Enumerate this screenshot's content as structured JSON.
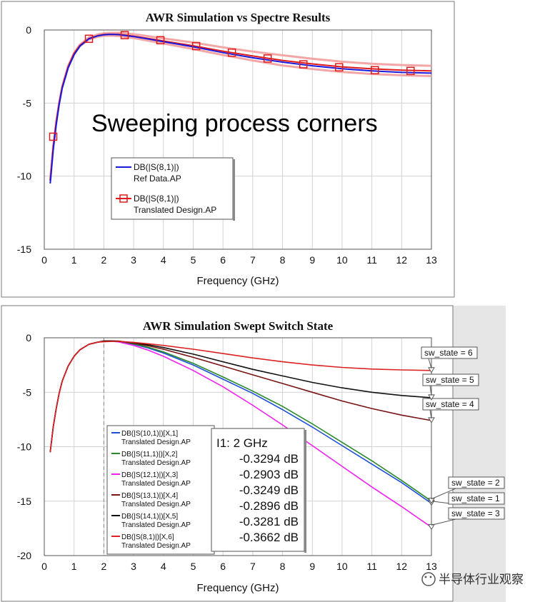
{
  "colors": {
    "ref": "#1a1adf",
    "translated": "#e01b1b",
    "translated_band": "#f4a6a6",
    "sw1": "#1f4fd8",
    "sw2": "#2a8a2a",
    "sw3": "#ee22ee",
    "sw4": "#7a1414",
    "sw5": "#111111",
    "sw6": "#dd2222",
    "grid": "#d2d2d2",
    "side_panel": "#e6e6e6"
  },
  "watermark": "半导体行业观察",
  "chart_data": [
    {
      "type": "line",
      "title": "AWR Simulation vs Spectre Results",
      "xlabel": "Frequency (GHz)",
      "ylabel": "",
      "xlim": [
        0,
        13
      ],
      "ylim": [
        -15,
        0
      ],
      "xticks": [
        "0",
        "1",
        "2",
        "3",
        "4",
        "5",
        "6",
        "7",
        "8",
        "9",
        "10",
        "11",
        "12",
        "13"
      ],
      "yticks": [
        "0",
        "-5",
        "-10",
        "-15"
      ],
      "grid": true,
      "legend_position": "center-left",
      "annotation": "Sweeping process corners",
      "legend": [
        {
          "name": "DB(|S(8,1)|)",
          "source": "Ref Data.AP",
          "marker": "none"
        },
        {
          "name": "DB(|S(8,1)|)",
          "source": "Translated Design.AP",
          "marker": "square"
        }
      ],
      "x": [
        0.2,
        0.3,
        0.4,
        0.5,
        0.6,
        0.8,
        1.0,
        1.2,
        1.5,
        1.8,
        2.0,
        2.2,
        2.5,
        3.0,
        3.5,
        4.0,
        5.0,
        6.0,
        7.0,
        8.0,
        9.0,
        10.0,
        11.0,
        12.0,
        13.0
      ],
      "series": [
        {
          "name": "Ref Data.AP",
          "values": [
            -10.5,
            -8.2,
            -6.5,
            -5.1,
            -4.0,
            -2.6,
            -1.7,
            -1.1,
            -0.6,
            -0.4,
            -0.33,
            -0.3,
            -0.32,
            -0.45,
            -0.62,
            -0.8,
            -1.15,
            -1.55,
            -1.9,
            -2.2,
            -2.45,
            -2.65,
            -2.8,
            -2.9,
            -2.95
          ]
        },
        {
          "name": "Translated Design.AP",
          "values": [
            -10.3,
            -8.0,
            -6.3,
            -5.0,
            -3.9,
            -2.5,
            -1.6,
            -1.05,
            -0.58,
            -0.38,
            -0.31,
            -0.29,
            -0.3,
            -0.42,
            -0.58,
            -0.75,
            -1.08,
            -1.45,
            -1.78,
            -2.08,
            -2.32,
            -2.52,
            -2.66,
            -2.75,
            -2.8
          ]
        }
      ],
      "markers": {
        "x": [
          0.3,
          1.5,
          2.7,
          3.9,
          5.1,
          6.3,
          7.5,
          8.7,
          9.9,
          11.1,
          12.3
        ],
        "y": [
          -7.3,
          -0.6,
          -0.35,
          -0.7,
          -1.1,
          -1.55,
          -1.95,
          -2.35,
          -2.55,
          -2.75,
          -2.8
        ]
      }
    },
    {
      "type": "line",
      "title": "AWR Simulation Swept Switch State",
      "xlabel": "Frequency (GHz)",
      "ylabel": "",
      "xlim": [
        0,
        13
      ],
      "ylim": [
        -20,
        0
      ],
      "xticks": [
        "0",
        "1",
        "2",
        "3",
        "4",
        "5",
        "6",
        "7",
        "8",
        "9",
        "10",
        "11",
        "12",
        "13"
      ],
      "yticks": [
        "0",
        "-5",
        "-10",
        "-15",
        "-20"
      ],
      "grid": true,
      "legend_position": "bottom-left",
      "cursor": {
        "label": "I1: 2 GHz",
        "x": 2,
        "values": [
          "-0.3294 dB",
          "-0.2903 dB",
          "-0.3249 dB",
          "-0.2896 dB",
          "-0.3281 dB",
          "-0.3662 dB"
        ]
      },
      "x": [
        0.2,
        0.3,
        0.4,
        0.5,
        0.6,
        0.8,
        1.0,
        1.2,
        1.5,
        1.8,
        2.0,
        2.2,
        2.5,
        3.0,
        3.5,
        4.0,
        5.0,
        6.0,
        7.0,
        8.0,
        9.0,
        10.0,
        11.0,
        12.0,
        13.0
      ],
      "series": [
        {
          "name": "DB(|S(10,1)|)[X,1]",
          "source": "Translated Design.AP",
          "color_key": "sw1",
          "end_label": "sw_state = 1",
          "values": [
            -10.5,
            -8.2,
            -6.5,
            -5.1,
            -4.0,
            -2.6,
            -1.7,
            -1.1,
            -0.6,
            -0.4,
            -0.33,
            -0.3,
            -0.35,
            -0.6,
            -0.95,
            -1.4,
            -2.5,
            -3.8,
            -5.1,
            -6.6,
            -8.2,
            -9.9,
            -11.6,
            -13.3,
            -15.2
          ]
        },
        {
          "name": "DB(|S(11,1)|)[X,2]",
          "source": "Translated Design.AP",
          "color_key": "sw2",
          "end_label": "sw_state = 2",
          "values": [
            -10.5,
            -8.2,
            -6.5,
            -5.1,
            -4.0,
            -2.6,
            -1.7,
            -1.1,
            -0.6,
            -0.4,
            -0.29,
            -0.28,
            -0.32,
            -0.55,
            -0.88,
            -1.3,
            -2.35,
            -3.6,
            -4.9,
            -6.3,
            -7.9,
            -9.6,
            -11.3,
            -13.1,
            -15.0
          ]
        },
        {
          "name": "DB(|S(12,1)|)[X,3]",
          "source": "Translated Design.AP",
          "color_key": "sw3",
          "end_label": "sw_state = 3",
          "values": [
            -10.5,
            -8.2,
            -6.5,
            -5.1,
            -4.0,
            -2.6,
            -1.7,
            -1.1,
            -0.6,
            -0.4,
            -0.32,
            -0.3,
            -0.38,
            -0.7,
            -1.15,
            -1.7,
            -3.0,
            -4.5,
            -6.2,
            -8.0,
            -9.9,
            -11.8,
            -13.7,
            -15.5,
            -17.4
          ]
        },
        {
          "name": "DB(|S(13,1)|)[X,4]",
          "source": "Translated Design.AP",
          "color_key": "sw4",
          "end_label": "sw_state = 4",
          "values": [
            -10.5,
            -8.2,
            -6.5,
            -5.1,
            -4.0,
            -2.6,
            -1.7,
            -1.1,
            -0.6,
            -0.4,
            -0.29,
            -0.28,
            -0.3,
            -0.5,
            -0.75,
            -1.05,
            -1.8,
            -2.6,
            -3.4,
            -4.2,
            -5.0,
            -5.8,
            -6.5,
            -7.1,
            -7.6
          ]
        },
        {
          "name": "DB(|S(14,1)|)[X,5]",
          "source": "Translated Design.AP",
          "color_key": "sw5",
          "end_label": "sw_state = 5",
          "values": [
            -10.5,
            -8.2,
            -6.5,
            -5.1,
            -4.0,
            -2.6,
            -1.7,
            -1.1,
            -0.6,
            -0.4,
            -0.33,
            -0.3,
            -0.32,
            -0.45,
            -0.65,
            -0.9,
            -1.5,
            -2.2,
            -2.9,
            -3.5,
            -4.1,
            -4.6,
            -5.0,
            -5.3,
            -5.5
          ]
        },
        {
          "name": "DB(|S(8,1)|)[X,6]",
          "source": "Translated Design.AP",
          "color_key": "sw6",
          "end_label": "sw_state = 6",
          "values": [
            -10.5,
            -8.2,
            -6.5,
            -5.1,
            -4.0,
            -2.6,
            -1.7,
            -1.1,
            -0.6,
            -0.4,
            -0.37,
            -0.34,
            -0.33,
            -0.42,
            -0.55,
            -0.7,
            -1.05,
            -1.45,
            -1.85,
            -2.2,
            -2.5,
            -2.72,
            -2.87,
            -2.95,
            -3.0
          ]
        }
      ]
    }
  ]
}
